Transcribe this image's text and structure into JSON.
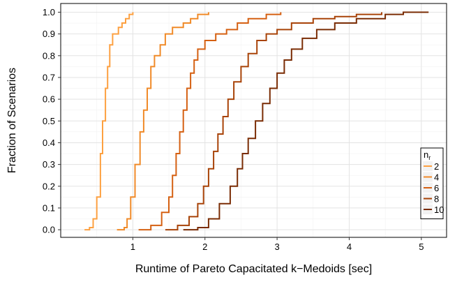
{
  "chart_data": {
    "type": "line",
    "subtype": "empirical CDF (step)",
    "title": "",
    "xlabel": "Runtime of Pareto Capacitated k−Medoids [sec]",
    "ylabel": "Fraction of Scenarios",
    "xlim": [
      0.0,
      5.35
    ],
    "ylim": [
      -0.035,
      1.04
    ],
    "x_ticks": [
      "1",
      "2",
      "3",
      "4",
      "5"
    ],
    "x_tick_values": [
      1,
      2,
      3,
      4,
      5
    ],
    "y_ticks": [
      "0.0",
      "0.1",
      "0.2",
      "0.3",
      "0.4",
      "0.5",
      "0.6",
      "0.7",
      "0.8",
      "0.9",
      "1.0"
    ],
    "y_tick_values": [
      0.0,
      0.1,
      0.2,
      0.3,
      0.4,
      0.5,
      0.6,
      0.7,
      0.8,
      0.9,
      1.0
    ],
    "grid": true,
    "legend": {
      "title": "n",
      "title_subscript": "r",
      "position": "bottom-right"
    },
    "series": [
      {
        "name": "2",
        "color": "#FDA040",
        "points": [
          [
            0.33,
            0.0
          ],
          [
            0.4,
            0.01
          ],
          [
            0.45,
            0.05
          ],
          [
            0.5,
            0.15
          ],
          [
            0.55,
            0.35
          ],
          [
            0.58,
            0.5
          ],
          [
            0.62,
            0.65
          ],
          [
            0.65,
            0.75
          ],
          [
            0.68,
            0.85
          ],
          [
            0.72,
            0.9
          ],
          [
            0.8,
            0.93
          ],
          [
            0.85,
            0.95
          ],
          [
            0.9,
            0.97
          ],
          [
            0.95,
            0.99
          ],
          [
            1.0,
            1.0
          ]
        ]
      },
      {
        "name": "4",
        "color": "#F08A28",
        "points": [
          [
            0.78,
            0.0
          ],
          [
            0.88,
            0.01
          ],
          [
            0.92,
            0.05
          ],
          [
            0.97,
            0.15
          ],
          [
            1.03,
            0.3
          ],
          [
            1.1,
            0.45
          ],
          [
            1.15,
            0.55
          ],
          [
            1.2,
            0.65
          ],
          [
            1.25,
            0.75
          ],
          [
            1.3,
            0.8
          ],
          [
            1.38,
            0.85
          ],
          [
            1.45,
            0.9
          ],
          [
            1.55,
            0.93
          ],
          [
            1.7,
            0.95
          ],
          [
            1.8,
            0.97
          ],
          [
            1.9,
            0.99
          ],
          [
            2.05,
            1.0
          ]
        ]
      },
      {
        "name": "6",
        "color": "#D56012",
        "points": [
          [
            1.08,
            0.0
          ],
          [
            1.25,
            0.02
          ],
          [
            1.4,
            0.08
          ],
          [
            1.5,
            0.15
          ],
          [
            1.55,
            0.25
          ],
          [
            1.6,
            0.35
          ],
          [
            1.65,
            0.45
          ],
          [
            1.7,
            0.55
          ],
          [
            1.75,
            0.65
          ],
          [
            1.8,
            0.72
          ],
          [
            1.85,
            0.78
          ],
          [
            1.9,
            0.83
          ],
          [
            2.0,
            0.87
          ],
          [
            2.15,
            0.9
          ],
          [
            2.3,
            0.92
          ],
          [
            2.45,
            0.95
          ],
          [
            2.6,
            0.97
          ],
          [
            2.85,
            0.99
          ],
          [
            3.05,
            1.0
          ]
        ]
      },
      {
        "name": "8",
        "color": "#A84308",
        "points": [
          [
            1.45,
            0.0
          ],
          [
            1.62,
            0.02
          ],
          [
            1.78,
            0.06
          ],
          [
            1.9,
            0.12
          ],
          [
            1.98,
            0.2
          ],
          [
            2.05,
            0.28
          ],
          [
            2.12,
            0.36
          ],
          [
            2.18,
            0.44
          ],
          [
            2.25,
            0.52
          ],
          [
            2.32,
            0.6
          ],
          [
            2.4,
            0.68
          ],
          [
            2.5,
            0.75
          ],
          [
            2.6,
            0.81
          ],
          [
            2.72,
            0.87
          ],
          [
            2.85,
            0.9
          ],
          [
            3.0,
            0.92
          ],
          [
            3.2,
            0.95
          ],
          [
            3.5,
            0.97
          ],
          [
            3.8,
            0.98
          ],
          [
            4.1,
            0.99
          ],
          [
            4.45,
            1.0
          ]
        ]
      },
      {
        "name": "10",
        "color": "#7A2C04",
        "points": [
          [
            1.7,
            0.0
          ],
          [
            1.9,
            0.01
          ],
          [
            2.05,
            0.05
          ],
          [
            2.2,
            0.12
          ],
          [
            2.35,
            0.2
          ],
          [
            2.45,
            0.28
          ],
          [
            2.52,
            0.35
          ],
          [
            2.6,
            0.42
          ],
          [
            2.7,
            0.5
          ],
          [
            2.8,
            0.58
          ],
          [
            2.9,
            0.65
          ],
          [
            3.0,
            0.72
          ],
          [
            3.1,
            0.78
          ],
          [
            3.2,
            0.83
          ],
          [
            3.35,
            0.88
          ],
          [
            3.55,
            0.92
          ],
          [
            3.8,
            0.95
          ],
          [
            4.1,
            0.97
          ],
          [
            4.5,
            0.99
          ],
          [
            4.75,
            1.0
          ],
          [
            5.1,
            1.0
          ]
        ]
      }
    ]
  }
}
